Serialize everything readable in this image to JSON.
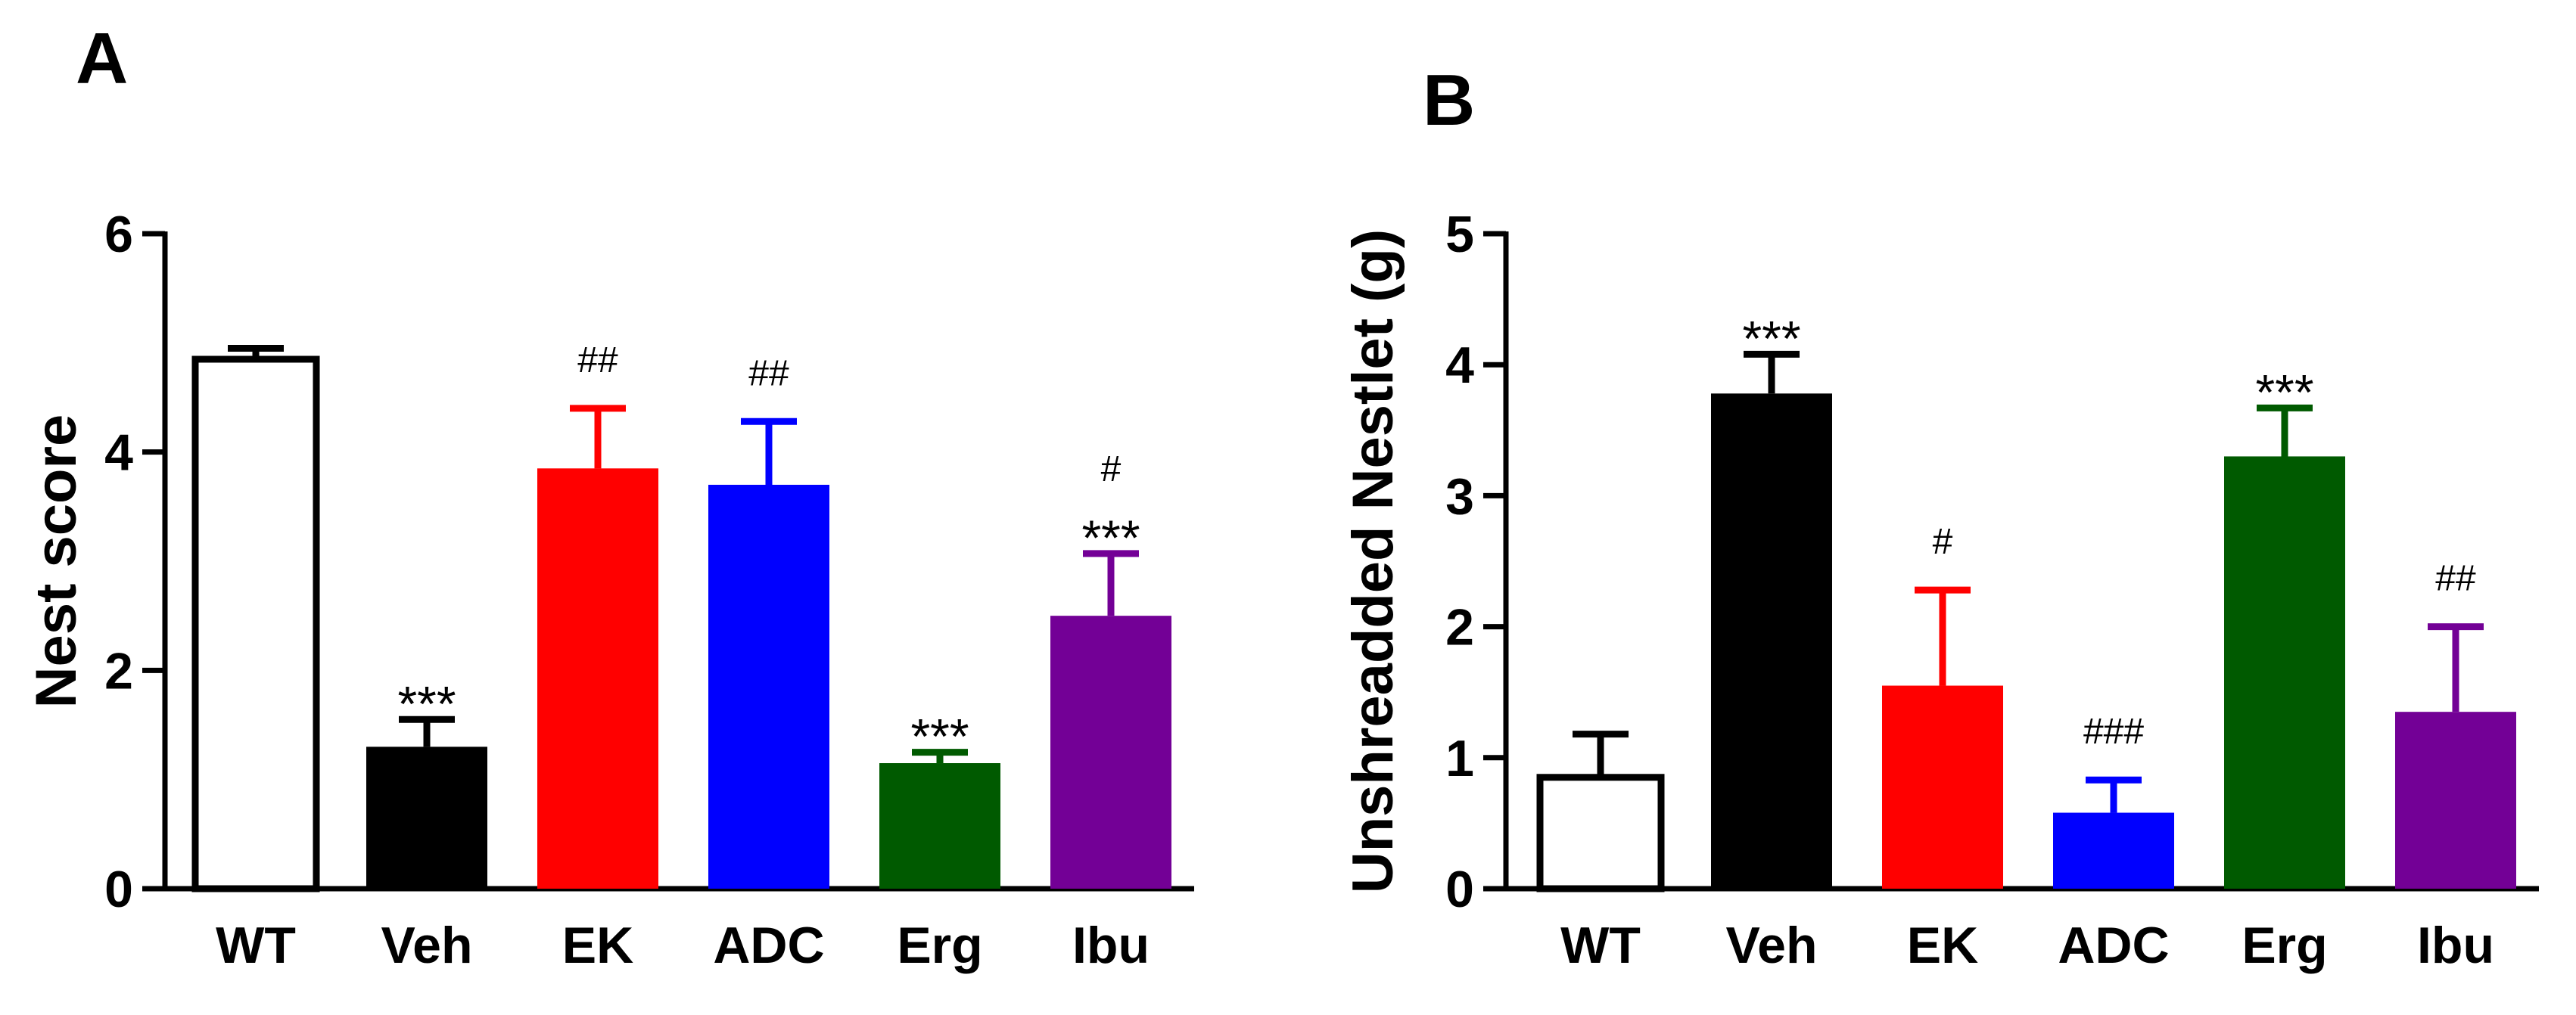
{
  "colors": {
    "WT": "#ffffff",
    "Veh": "#000000",
    "EK": "#ff0000",
    "ADC": "#0000ff",
    "Erg": "#005a00",
    "Ibu": "#730096"
  },
  "chart_data": [
    {
      "panel": "A",
      "type": "bar",
      "title": "",
      "xlabel": "",
      "ylabel": "Nest score",
      "ylim": [
        0,
        6
      ],
      "yticks": [
        0,
        2,
        4,
        6
      ],
      "grid": false,
      "categories": [
        "WT",
        "Veh",
        "EK",
        "ADC",
        "Erg",
        "Ibu"
      ],
      "values": [
        4.85,
        1.3,
        3.85,
        3.7,
        1.15,
        2.5
      ],
      "errors": [
        0.1,
        0.25,
        0.55,
        0.58,
        0.1,
        0.57
      ],
      "sig_stars": [
        "",
        "***",
        "",
        "",
        "***",
        "***"
      ],
      "sig_hash": [
        "",
        "",
        "##",
        "##",
        "",
        "#"
      ]
    },
    {
      "panel": "B",
      "type": "bar",
      "title": "",
      "xlabel": "",
      "ylabel": "Unshreadded Nestlet (g)",
      "ylim": [
        0,
        5
      ],
      "yticks": [
        0,
        1,
        2,
        3,
        4,
        5
      ],
      "grid": false,
      "categories": [
        "WT",
        "Veh",
        "EK",
        "ADC",
        "Erg",
        "Ibu"
      ],
      "values": [
        0.85,
        3.78,
        1.55,
        0.58,
        3.3,
        1.35
      ],
      "errors": [
        0.33,
        0.3,
        0.73,
        0.25,
        0.37,
        0.65
      ],
      "sig_stars": [
        "",
        "***",
        "",
        "",
        "***",
        ""
      ],
      "sig_hash": [
        "",
        "",
        "#",
        "###",
        "",
        "##"
      ]
    }
  ]
}
